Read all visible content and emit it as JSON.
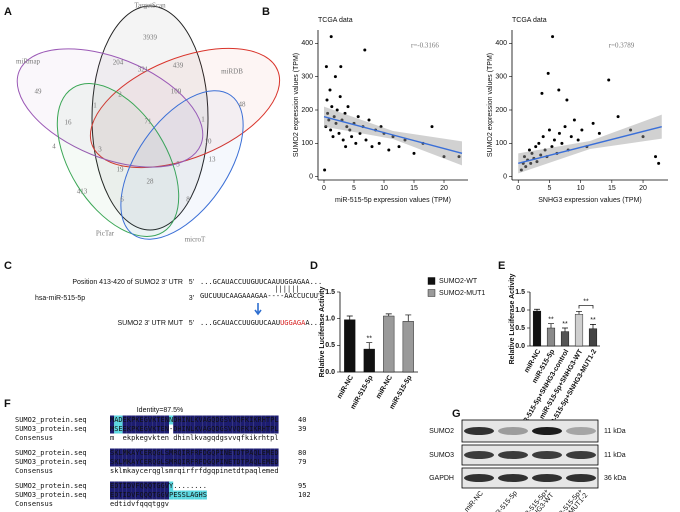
{
  "panel_labels": [
    "A",
    "B",
    "C",
    "D",
    "E",
    "F",
    "G"
  ],
  "chart_data": [
    {
      "type": "venn",
      "sets": [
        {
          "name": "TargetScan",
          "color": "#222222"
        },
        {
          "name": "miRDB",
          "color": "#d9342b"
        },
        {
          "name": "miRmap",
          "color": "#9b59b6"
        },
        {
          "name": "PicTar",
          "color": "#3aa655"
        },
        {
          "name": "microT",
          "color": "#3b6fd6"
        }
      ],
      "counts": [
        3939,
        49,
        48,
        413,
        8,
        71,
        204,
        439,
        109,
        321,
        2,
        16,
        10,
        4,
        3,
        19,
        28,
        5,
        1,
        1,
        13,
        6
      ]
    },
    {
      "type": "scatter",
      "title": "TCGA data",
      "x_label": "miR-515-5p expression values (TPM)",
      "y_label": "SUMO2 expression values (TPM)",
      "annotation": "r=-0.3166",
      "color": "#000000",
      "x": [
        0.1,
        0.3,
        0.5,
        0.6,
        0.8,
        1.0,
        1.1,
        1.3,
        1.5,
        1.7,
        1.9,
        2.0,
        2.2,
        2.5,
        2.7,
        3.0,
        3.2,
        3.5,
        3.8,
        4.0,
        4.3,
        4.6,
        5.0,
        5.3,
        5.7,
        6.0,
        6.5,
        7.0,
        7.5,
        8.0,
        8.6,
        9.2,
        10.0,
        10.8,
        11.5,
        12.5,
        13.5,
        15.0,
        16.5,
        18.0,
        20.0,
        22.5,
        1.2,
        2.8,
        0.4,
        3.6,
        6.8,
        9.5
      ],
      "y": [
        20,
        150,
        230,
        190,
        170,
        260,
        140,
        210,
        120,
        180,
        300,
        160,
        200,
        130,
        240,
        170,
        110,
        190,
        150,
        210,
        140,
        120,
        160,
        100,
        180,
        130,
        150,
        110,
        170,
        90,
        140,
        100,
        130,
        80,
        120,
        90,
        110,
        70,
        100,
        150,
        60,
        60,
        420,
        330,
        330,
        90,
        380,
        150
      ],
      "trend": {
        "x": [
          0,
          23
        ],
        "y": [
          180,
          70
        ],
        "color": "#3a6fd8"
      },
      "xlim": [
        -1,
        24
      ],
      "ylim": [
        -10,
        440
      ],
      "xticks": [
        0,
        5,
        10,
        15,
        20
      ],
      "yticks": [
        0,
        100,
        200,
        300,
        400
      ]
    },
    {
      "type": "scatter",
      "title": "TCGA data",
      "x_label": "SNHG3 expression values (TPM)",
      "y_label": "SUMO2 expression values (TPM)",
      "annotation": "r=0.3789",
      "color": "#000000",
      "x": [
        0.5,
        0.8,
        1.0,
        1.2,
        1.5,
        1.8,
        2.0,
        2.2,
        2.5,
        2.8,
        3.0,
        3.3,
        3.6,
        4.0,
        4.3,
        4.6,
        5.0,
        5.4,
        5.8,
        6.2,
        6.6,
        7.0,
        7.5,
        8.0,
        8.5,
        9.0,
        9.6,
        10.2,
        11.0,
        12.0,
        13.0,
        14.5,
        16.0,
        18.0,
        20.0,
        22.0,
        22.5,
        5.5,
        6.5,
        3.8,
        7.8,
        4.8
      ],
      "y": [
        20,
        40,
        60,
        30,
        50,
        80,
        40,
        70,
        55,
        90,
        45,
        100,
        65,
        120,
        80,
        60,
        140,
        90,
        110,
        70,
        130,
        100,
        150,
        80,
        120,
        170,
        110,
        140,
        90,
        160,
        130,
        290,
        180,
        140,
        120,
        60,
        40,
        420,
        260,
        250,
        230,
        310
      ],
      "trend": {
        "x": [
          0,
          23
        ],
        "y": [
          40,
          150
        ],
        "color": "#3a6fd8"
      },
      "xlim": [
        -1,
        24
      ],
      "ylim": [
        -10,
        440
      ],
      "xticks": [
        0,
        5,
        10,
        15,
        20
      ],
      "yticks": [
        0,
        100,
        200,
        300,
        400
      ]
    },
    {
      "type": "bar",
      "y_label": "Relative Luciferase Activity",
      "categories": [
        "miR-NC",
        "miR-515-5p",
        "miR-NC",
        "miR-515-5p"
      ],
      "series": [
        {
          "name": "SUMO2-WT",
          "color": "#111111",
          "values": [
            0.98,
            0.43,
            null,
            null
          ],
          "errors": [
            0.07,
            0.12,
            null,
            null
          ],
          "significance": [
            null,
            "**",
            null,
            null
          ]
        },
        {
          "name": "SUMO2-MUT1",
          "color": "#9a9a9a",
          "values": [
            null,
            null,
            1.05,
            0.95
          ],
          "errors": [
            null,
            null,
            0.04,
            0.12
          ],
          "significance": [
            null,
            null,
            null,
            null
          ]
        }
      ],
      "ylim": [
        0,
        1.5
      ],
      "yticks": [
        {
          "value": 0,
          "label": "0.0"
        },
        {
          "value": 0.5,
          "label": "0.5"
        },
        {
          "value": 1,
          "label": "1.0"
        },
        {
          "value": 1.5,
          "label": "1.5"
        }
      ]
    },
    {
      "type": "bar",
      "y_label": "Relative Luciferase Activity",
      "categories": [
        "miR-NC",
        "miR-515-5p",
        "miR-515-5p+SNHG3-control",
        "miR-515-5p+SNHG3-WT",
        "miR-515-5p+SNHG3-MUT1-2"
      ],
      "series": [
        {
          "colors": [
            "#111111",
            "#8a8a8a",
            "#555555",
            "#cfcfcf",
            "#444444"
          ],
          "values": [
            0.97,
            0.5,
            0.4,
            0.88,
            0.48
          ],
          "errors": [
            0.05,
            0.12,
            0.1,
            0.08,
            0.12
          ],
          "significance": [
            null,
            "**",
            "**",
            null,
            "**"
          ]
        }
      ],
      "comparisons": [
        {
          "between": [
            3,
            4
          ],
          "label": "**"
        }
      ],
      "ylim": [
        0,
        1.5
      ],
      "yticks": [
        {
          "value": 0,
          "label": "0.0"
        },
        {
          "value": 0.5,
          "label": "0.5"
        },
        {
          "value": 1,
          "label": "1.0"
        },
        {
          "value": 1.5,
          "label": "1.5"
        }
      ]
    }
  ],
  "panel_C": {
    "wt": {
      "label": "Position 413-420 of SUMO2 3' UTR",
      "end": "5'",
      "sequence": "...GCAUACCUUGUUCAAUUGGAGAA..."
    },
    "pairing": "||||||",
    "mirna": {
      "label": "hsa-miR-515-5p",
      "end": "3'",
      "sequence": "GUCUUUCAAGAAAGAA----AACCUCUU"
    },
    "mut": {
      "label": "SUMO2 3' UTR MUT",
      "end": "5'",
      "sequence": [
        "...GCAUACCUUGUUCAAU",
        "UGGAGA",
        "A..."
      ]
    }
  },
  "panel_F": {
    "title": "Identity=87.5%",
    "blocks": [
      {
        "rows": [
          {
            "name": "SUMO2_protein.seq",
            "sequence": "MADEKPKEGVKTENNDHINLKVAGQDGSVVQFKIKRHTPL",
            "end": 40
          },
          {
            "name": "SUMO3_protein.seq",
            "sequence": "MSEEKPKEGVKTEN-DHINLKVAGQDGSVVQFKIKRHTPL",
            "end": 39
          }
        ],
        "consensus": {
          "name": "Consensus",
          "sequence": "m  ekpkegvkten dhinlkvagqdgsvvqfkikrhtpl"
        }
      },
      {
        "rows": [
          {
            "name": "SUMO2_protein.seq",
            "sequence": "SKLMKAYCERQGLSMRQIRFRFDGQPINETDTPAQLEMED",
            "end": 80
          },
          {
            "name": "SUMO3_protein.seq",
            "sequence": "SKLMKAYCERQGLSMRQIRFRFDGQPINETDTPAQLEMED",
            "end": 79
          }
        ],
        "consensus": {
          "name": "Consensus",
          "sequence": "sklmkaycerqglsmrqirfrfdgqpinetdtpaqlemed"
        }
      },
      {
        "rows": [
          {
            "name": "SUMO2_protein.seq",
            "sequence": "EDTIDVFQQQTGGVY........",
            "end": 95
          },
          {
            "name": "SUMO3_protein.seq",
            "sequence": "EDTIDVFQQQTGGVPESSLAGHS",
            "end": 102
          }
        ],
        "consensus": {
          "name": "Consensus",
          "sequence": "edtidvfqqqtggv"
        }
      }
    ]
  },
  "panel_G": {
    "proteins": [
      "SUMO2",
      "SUMO3",
      "GAPDH"
    ],
    "sizes": [
      "11 kDa",
      "11 kDa",
      "36 kDa"
    ],
    "lanes": [
      [
        "miR-NC"
      ],
      [
        "miR-515-5p"
      ],
      [
        "miR-515-5p+",
        "SNHG3-WT"
      ],
      [
        "miR-515-5p+",
        "SNHG3-MUT1-2"
      ]
    ]
  }
}
